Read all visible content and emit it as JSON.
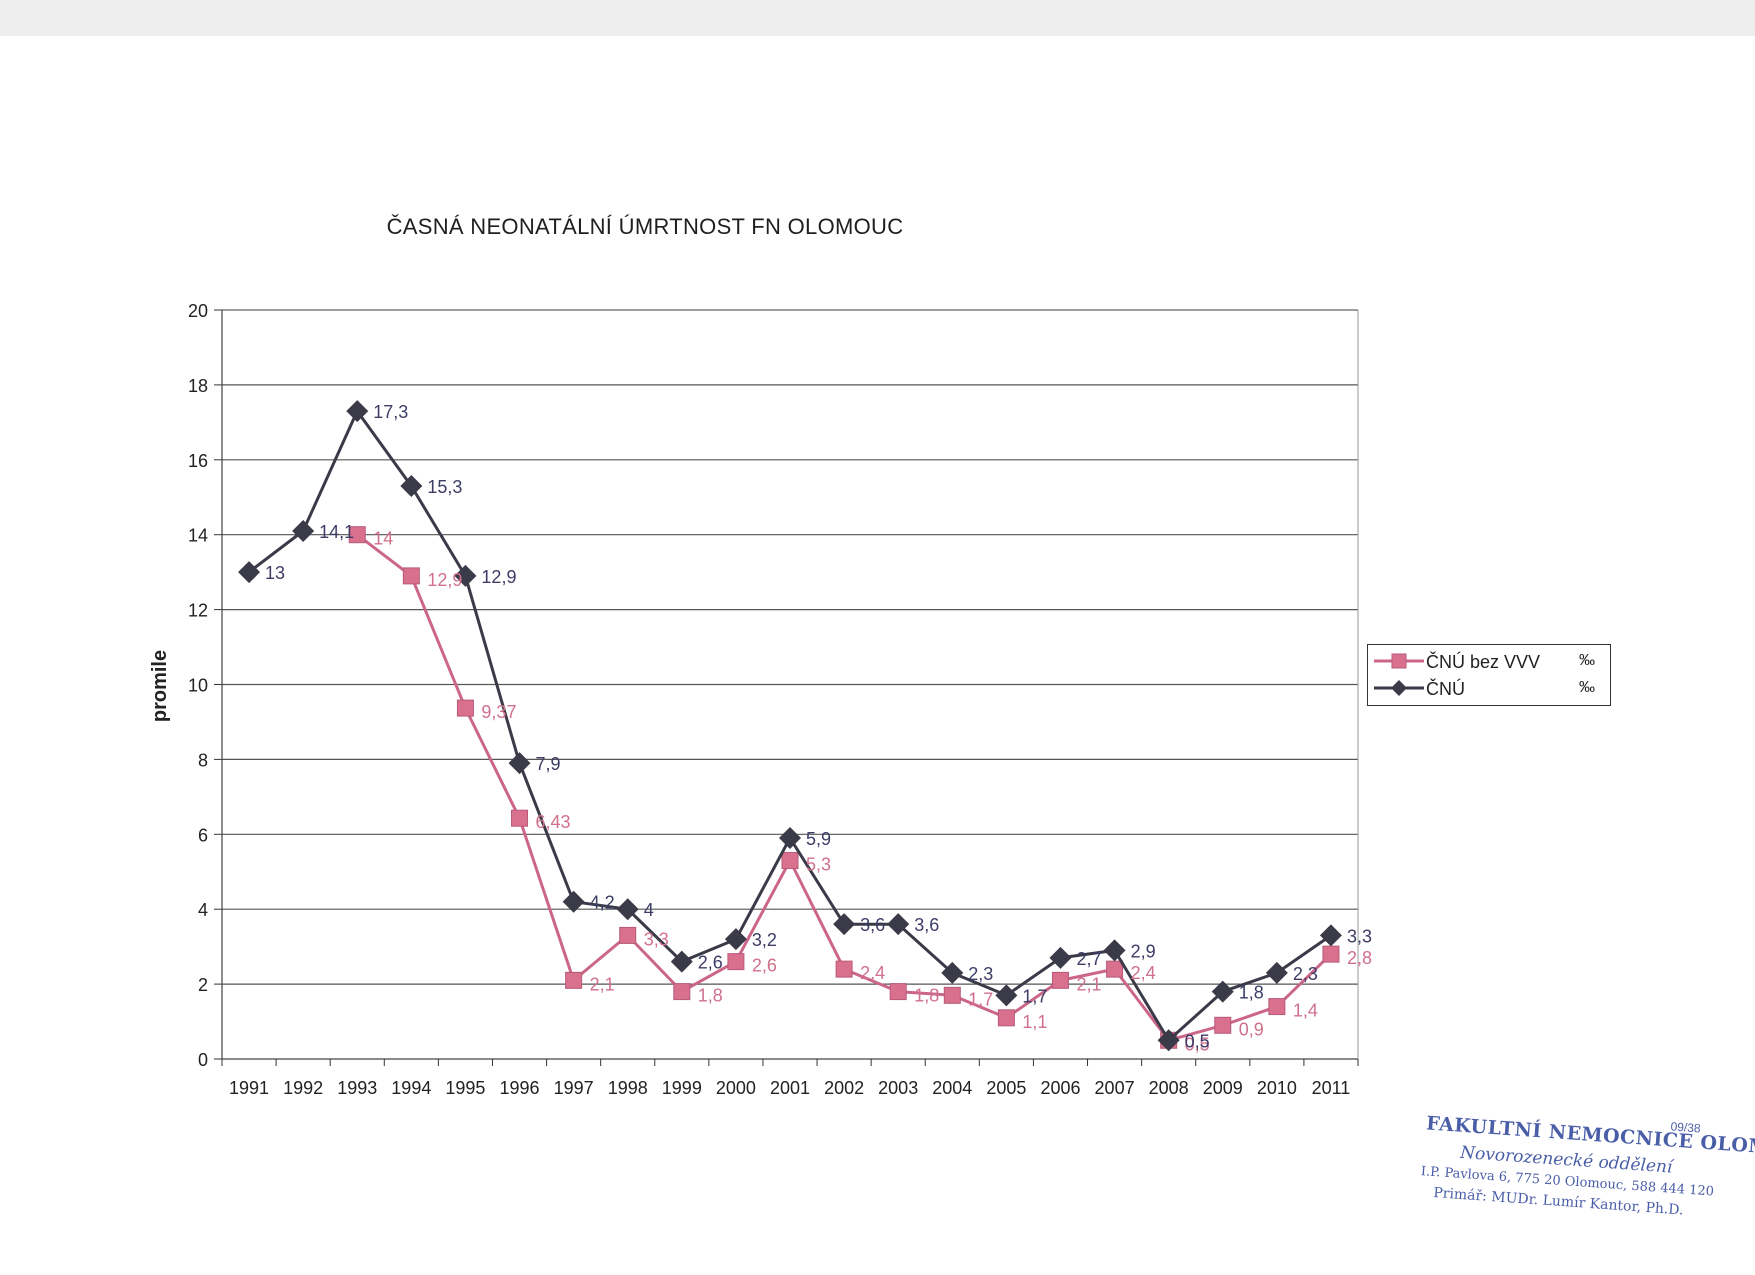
{
  "chart_data": {
    "type": "line",
    "title": "ČASNÁ NEONATÁLNÍ ÚMRTNOST FN OLOMOUC",
    "xlabel": "",
    "ylabel": "promile",
    "ylim": [
      0,
      20
    ],
    "yticks": [
      0,
      2,
      4,
      6,
      8,
      10,
      12,
      14,
      16,
      18,
      20
    ],
    "grid": true,
    "legend_position": "right",
    "categories": [
      "1991",
      "1992",
      "1993",
      "1994",
      "1995",
      "1996",
      "1997",
      "1998",
      "1999",
      "2000",
      "2001",
      "2002",
      "2003",
      "2004",
      "2005",
      "2006",
      "2007",
      "2008",
      "2009",
      "2010",
      "2011"
    ],
    "series": [
      {
        "name": "ČNÚ bez VVV",
        "unit": "‰",
        "color": "#cc6688",
        "marker": "square",
        "values": [
          null,
          null,
          14,
          12.9,
          9.37,
          6.43,
          2.1,
          3.3,
          1.8,
          2.6,
          5.3,
          2.4,
          1.8,
          1.7,
          1.1,
          2.1,
          2.4,
          0.5,
          0.9,
          1.4,
          2.8
        ],
        "labels": [
          "",
          "",
          "14",
          "12,9",
          "9,37",
          "6,43",
          "2,1",
          "3,3",
          "1,8",
          "2,6",
          "5,3",
          "2,4",
          "1,8",
          "1,7",
          "1,1",
          "2,1",
          "2,4",
          "0,5",
          "0,9",
          "1,4",
          "2,8"
        ]
      },
      {
        "name": "ČNÚ",
        "unit": "‰",
        "color": "#3a3a48",
        "marker": "diamond",
        "values": [
          13,
          14.1,
          17.3,
          15.3,
          12.9,
          7.9,
          4.2,
          4,
          2.6,
          3.2,
          5.9,
          3.6,
          3.6,
          2.3,
          1.7,
          2.7,
          2.9,
          0.5,
          1.8,
          2.3,
          3.3
        ],
        "labels": [
          "13",
          "14,1",
          "17,3",
          "15,3",
          "12,9",
          "7,9",
          "4,2",
          "4",
          "2,6",
          "3,2",
          "5,9",
          "3,6",
          "3,6",
          "2,3",
          "1,7",
          "2,7",
          "2,9",
          "0,5",
          "1,8",
          "2,3",
          "3,3"
        ]
      }
    ]
  },
  "stamp": {
    "number": "09/38",
    "line1": "FAKULTNÍ NEMOCNICE OLOMOUC",
    "line2": "Novorozenecké oddělení",
    "line3": "I.P. Pavlova 6, 775 20 Olomouc, 588 444 120",
    "line4": "Primář: MUDr. Lumír Kantor, Ph.D."
  },
  "colors": {
    "background": "#ffffff",
    "gridline": "#666666",
    "axis": "#333333"
  }
}
